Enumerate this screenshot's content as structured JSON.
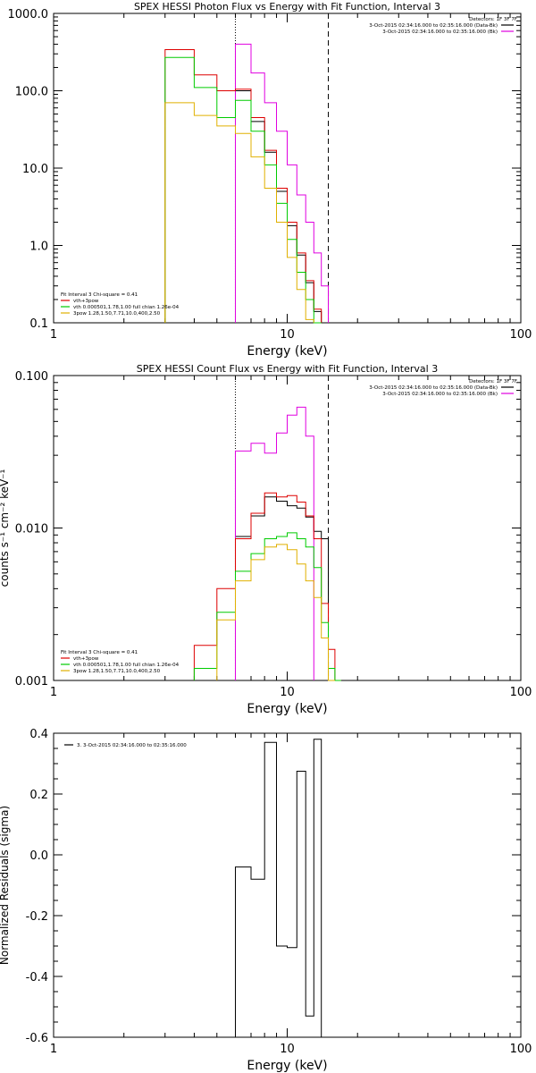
{
  "chart_data": [
    {
      "type": "line",
      "title": "SPEX HESSI Photon Flux vs Energy with Fit Function, Interval 3",
      "xlabel": "Energy (keV)",
      "ylabel": "",
      "xscale": "log",
      "yscale": "log",
      "xlim": [
        1,
        100
      ],
      "ylim": [
        0.1,
        1000
      ],
      "x_ticks": [
        {
          "v": 1,
          "label": "1"
        },
        {
          "v": 10,
          "label": "10"
        },
        {
          "v": 100,
          "label": "100"
        }
      ],
      "y_ticks": [
        {
          "v": 0.1,
          "label": "0.1"
        },
        {
          "v": 1,
          "label": "1.0"
        },
        {
          "v": 10,
          "label": "10.0"
        },
        {
          "v": 100,
          "label": "100.0"
        },
        {
          "v": 1000,
          "label": "1000.0"
        }
      ],
      "vlines": [
        {
          "x": 6.0,
          "style": "dotted"
        },
        {
          "x": 15.0,
          "style": "dashed"
        }
      ],
      "legend_top_right": {
        "header": "Detectors: 1F 3F 7F",
        "entries": [
          {
            "label": "3-Oct-2015 02:34:16.000 to 02:35:16.000 (Data-Bk)",
            "color": "#000000"
          },
          {
            "label": "3-Oct-2015 02:34:16.000 to 02:35:16.000 (Bk)",
            "color": "#e000e0"
          }
        ]
      },
      "legend_bottom_left": {
        "header": "Fit Interval 3   Chi-square = 0.41",
        "entries": [
          {
            "label": "vth+3pow",
            "color": "#dd0000"
          },
          {
            "label": "vth 0.000501,1.78,1.00   full chian 1.26e-04",
            "color": "#00cc00"
          },
          {
            "label": "3pow 1.28,1.50,7.71,10.0,400,2.50",
            "color": "#e0b000"
          }
        ]
      },
      "series": [
        {
          "name": "Data-Bk",
          "color": "#000000",
          "start": 6.0,
          "steps": [
            [
              7.0,
              100
            ],
            [
              8.0,
              40
            ],
            [
              9.0,
              16
            ],
            [
              10.0,
              5
            ],
            [
              11.0,
              1.8
            ],
            [
              12.0,
              0.75
            ],
            [
              13.0,
              0.33
            ],
            [
              14.0,
              0.14
            ]
          ]
        },
        {
          "name": "Bk",
          "color": "#e000e0",
          "start": 6.0,
          "steps": [
            [
              7.0,
              400
            ],
            [
              8.0,
              170
            ],
            [
              9.0,
              70
            ],
            [
              10.0,
              30
            ],
            [
              11.0,
              11
            ],
            [
              12.0,
              4.5
            ],
            [
              13.0,
              2
            ],
            [
              14.0,
              0.8
            ],
            [
              15.0,
              0.3
            ]
          ]
        },
        {
          "name": "vth+3pow",
          "color": "#dd0000",
          "start": 3.0,
          "steps": [
            [
              4.0,
              340
            ],
            [
              5.0,
              160
            ],
            [
              6.0,
              100
            ],
            [
              7.0,
              105
            ],
            [
              8.0,
              45
            ],
            [
              9.0,
              17
            ],
            [
              10.0,
              5.5
            ],
            [
              11.0,
              2.0
            ],
            [
              12.0,
              0.8
            ],
            [
              13.0,
              0.35
            ],
            [
              14.0,
              0.15
            ]
          ]
        },
        {
          "name": "vth",
          "color": "#00cc00",
          "start": 3.0,
          "steps": [
            [
              4.0,
              270
            ],
            [
              5.0,
              110
            ],
            [
              6.0,
              45
            ],
            [
              7.0,
              75
            ],
            [
              8.0,
              30
            ],
            [
              9.0,
              11
            ],
            [
              10.0,
              3.5
            ],
            [
              11.0,
              1.2
            ],
            [
              12.0,
              0.45
            ],
            [
              13.0,
              0.2
            ],
            [
              14.0,
              0.1
            ]
          ]
        },
        {
          "name": "3pow",
          "color": "#e0b000",
          "start": 3.0,
          "steps": [
            [
              4.0,
              70
            ],
            [
              5.0,
              48
            ],
            [
              6.0,
              35
            ],
            [
              7.0,
              28
            ],
            [
              8.0,
              14
            ],
            [
              9.0,
              5.5
            ],
            [
              10.0,
              2.0
            ],
            [
              11.0,
              0.7
            ],
            [
              12.0,
              0.27
            ],
            [
              13.0,
              0.11
            ]
          ]
        }
      ]
    },
    {
      "type": "line",
      "title": "SPEX HESSI Count Flux vs Energy with Fit Function, Interval 3",
      "xlabel": "Energy (keV)",
      "ylabel": "counts s⁻¹ cm⁻² keV⁻¹",
      "xscale": "log",
      "yscale": "log",
      "xlim": [
        1,
        100
      ],
      "ylim": [
        0.001,
        0.1
      ],
      "x_ticks": [
        {
          "v": 1,
          "label": "1"
        },
        {
          "v": 10,
          "label": "10"
        },
        {
          "v": 100,
          "label": "100"
        }
      ],
      "y_ticks": [
        {
          "v": 0.001,
          "label": "0.001"
        },
        {
          "v": 0.01,
          "label": "0.010"
        },
        {
          "v": 0.1,
          "label": "0.100"
        }
      ],
      "vlines": [
        {
          "x": 6.0,
          "style": "dotted"
        },
        {
          "x": 15.0,
          "style": "dashed"
        }
      ],
      "legend_top_right": {
        "header": "Detectors: 1F 3F 7F",
        "entries": [
          {
            "label": "3-Oct-2015 02:34:16.000 to 02:35:16.000 (Data-Bk)",
            "color": "#000000"
          },
          {
            "label": "3-Oct-2015 02:34:16.000 to 02:35:16.000 (Bk)",
            "color": "#e000e0"
          }
        ]
      },
      "legend_bottom_left": {
        "header": "Fit Interval 3   Chi-square = 0.41",
        "entries": [
          {
            "label": "vth+3pow",
            "color": "#dd0000"
          },
          {
            "label": "vth 0.000501,1.78,1.00   full chian 1.26e-04",
            "color": "#00cc00"
          },
          {
            "label": "3pow 1.28,1.50,7.71,10.0,400,2.50",
            "color": "#e0b000"
          }
        ]
      },
      "series": [
        {
          "name": "Data-Bk",
          "color": "#000000",
          "start": 6.0,
          "steps": [
            [
              7.0,
              0.0088
            ],
            [
              8.0,
              0.012
            ],
            [
              9.0,
              0.016
            ],
            [
              10.0,
              0.015
            ],
            [
              11.0,
              0.014
            ],
            [
              12.0,
              0.0135
            ],
            [
              13.0,
              0.0118
            ],
            [
              14.0,
              0.0095
            ],
            [
              15.0,
              0.0085
            ]
          ]
        },
        {
          "name": "Bk",
          "color": "#e000e0",
          "start": 6.0,
          "steps": [
            [
              7.0,
              0.032
            ],
            [
              8.0,
              0.036
            ],
            [
              9.0,
              0.031
            ],
            [
              10.0,
              0.042
            ],
            [
              11.0,
              0.055
            ],
            [
              12.0,
              0.062
            ],
            [
              13.0,
              0.04
            ]
          ]
        },
        {
          "name": "vth+3pow",
          "color": "#dd0000",
          "start": 4.0,
          "steps": [
            [
              5.0,
              0.0017
            ],
            [
              6.0,
              0.004
            ],
            [
              7.0,
              0.0085
            ],
            [
              8.0,
              0.0125
            ],
            [
              9.0,
              0.017
            ],
            [
              10.0,
              0.016
            ],
            [
              11.0,
              0.0163
            ],
            [
              12.0,
              0.0148
            ],
            [
              13.0,
              0.012
            ],
            [
              14.0,
              0.0085
            ],
            [
              15.0,
              0.0032
            ],
            [
              16.0,
              0.0016
            ],
            [
              17.0,
              0.001
            ]
          ]
        },
        {
          "name": "vth",
          "color": "#00cc00",
          "start": 4.0,
          "steps": [
            [
              5.0,
              0.0012
            ],
            [
              6.0,
              0.0028
            ],
            [
              7.0,
              0.0052
            ],
            [
              8.0,
              0.0068
            ],
            [
              9.0,
              0.0085
            ],
            [
              10.0,
              0.0088
            ],
            [
              11.0,
              0.0093
            ],
            [
              12.0,
              0.0085
            ],
            [
              13.0,
              0.0075
            ],
            [
              14.0,
              0.0055
            ],
            [
              15.0,
              0.0024
            ],
            [
              16.0,
              0.0012
            ],
            [
              17.0,
              0.001
            ]
          ]
        },
        {
          "name": "3pow",
          "color": "#e0b000",
          "start": 5.0,
          "steps": [
            [
              6.0,
              0.0025
            ],
            [
              7.0,
              0.0045
            ],
            [
              8.0,
              0.0062
            ],
            [
              9.0,
              0.0075
            ],
            [
              10.0,
              0.0078
            ],
            [
              11.0,
              0.0072
            ],
            [
              12.0,
              0.0058
            ],
            [
              13.0,
              0.0045
            ],
            [
              14.0,
              0.0035
            ],
            [
              15.0,
              0.0019
            ],
            [
              16.0,
              0.001
            ]
          ]
        }
      ]
    },
    {
      "type": "line",
      "title": "",
      "xlabel": "Energy (keV)",
      "ylabel": "Normalized Residuals (sigma)",
      "xscale": "log",
      "yscale": "linear",
      "xlim": [
        1,
        100
      ],
      "ylim": [
        -0.6,
        0.4
      ],
      "x_ticks": [
        {
          "v": 1,
          "label": "1"
        },
        {
          "v": 10,
          "label": "10"
        },
        {
          "v": 100,
          "label": "100"
        }
      ],
      "y_ticks": [
        {
          "v": -0.6,
          "label": "-0.6"
        },
        {
          "v": -0.4,
          "label": "-0.4"
        },
        {
          "v": -0.2,
          "label": "-0.2"
        },
        {
          "v": 0.0,
          "label": "0.0"
        },
        {
          "v": 0.2,
          "label": "0.2"
        },
        {
          "v": 0.4,
          "label": "0.4"
        }
      ],
      "legend_top_left": {
        "entries": [
          {
            "label": "3.  3-Oct-2015 02:34:16.000 to 02:35:16.000",
            "color": "#000000"
          }
        ]
      },
      "series": [
        {
          "name": "",
          "color": "#000000",
          "start": 6.0,
          "base": -0.6,
          "steps": [
            [
              7.0,
              -0.04
            ],
            [
              8.0,
              -0.08
            ],
            [
              9.0,
              0.37
            ],
            [
              10.0,
              -0.3
            ],
            [
              11.0,
              -0.305
            ],
            [
              12.0,
              0.275
            ],
            [
              13.0,
              -0.53
            ],
            [
              14.0,
              0.38
            ]
          ]
        }
      ]
    }
  ]
}
